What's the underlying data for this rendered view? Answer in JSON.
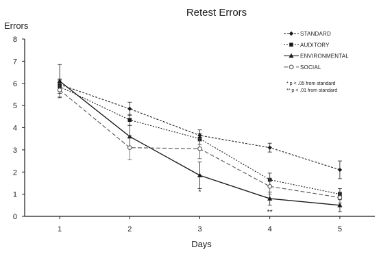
{
  "chart_data": {
    "type": "line",
    "title": "Retest Errors",
    "xlabel": "Days",
    "ylabel": "Errors",
    "x": [
      1,
      2,
      3,
      4,
      5
    ],
    "xlim": [
      0.5,
      5.5
    ],
    "ylim": [
      0,
      8
    ],
    "yticks": [
      0,
      1,
      2,
      3,
      4,
      5,
      6,
      7,
      8
    ],
    "grid": false,
    "legend_position": "top-right",
    "series": [
      {
        "name": "STANDARD",
        "color": "#1a1a1a",
        "dash": "3,2",
        "marker": "diamond",
        "values": [
          5.95,
          4.85,
          3.65,
          3.1,
          2.1
        ],
        "errors": [
          0.25,
          0.3,
          0.25,
          0.2,
          0.4
        ]
      },
      {
        "name": "AUDITORY",
        "color": "#1a1a1a",
        "dash": "2,2",
        "marker": "square",
        "values": [
          5.85,
          4.35,
          3.5,
          1.65,
          1.0
        ],
        "errors": [
          0.3,
          0.25,
          0.25,
          0.3,
          0.25
        ]
      },
      {
        "name": "ENVIRONMENTAL",
        "color": "#1a1a1a",
        "dash": "",
        "marker": "triangle",
        "values": [
          6.1,
          3.6,
          1.85,
          0.8,
          0.5
        ],
        "errors": [
          0.75,
          0.5,
          0.6,
          0.3,
          0.3
        ]
      },
      {
        "name": "SOCIAL",
        "color": "#555555",
        "dash": "6,3",
        "marker": "circle",
        "values": [
          5.7,
          3.1,
          3.05,
          1.35,
          0.85
        ],
        "errors": [
          0.3,
          0.55,
          0.45,
          0.35,
          0.25
        ]
      }
    ],
    "notes": [
      "* p < .05 from standard",
      "** p < .01 from standard"
    ],
    "significance_marks": [
      {
        "x": 3,
        "y": 1.0,
        "label": "*"
      },
      {
        "x": 4,
        "y": 0.1,
        "label": "**"
      }
    ]
  }
}
